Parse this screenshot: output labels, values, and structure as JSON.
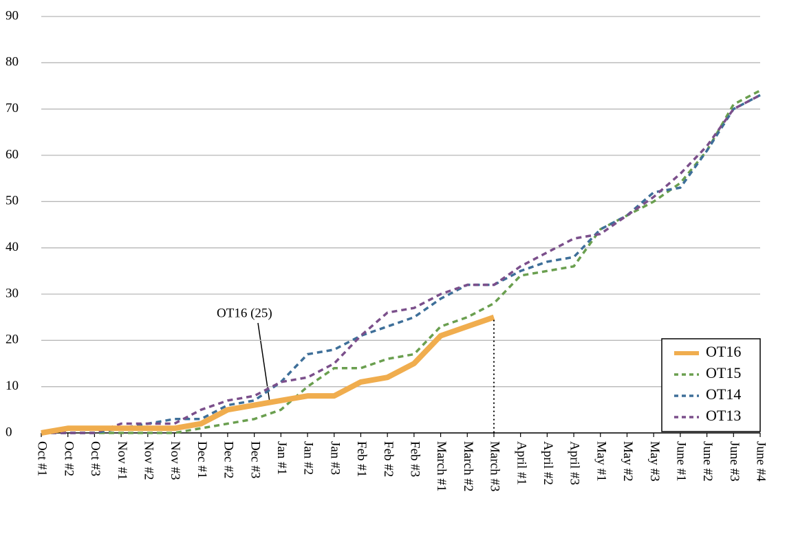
{
  "chart_data": {
    "type": "line",
    "categories": [
      "Oct #1",
      "Oct #2",
      "Oct #3",
      "Nov #1",
      "Nov #2",
      "Nov #3",
      "Dec #1",
      "Dec #2",
      "Dec #3",
      "Jan #1",
      "Jan #2",
      "Jan #3",
      "Feb #1",
      "Feb #2",
      "Feb #3",
      "March #1",
      "March #2",
      "March #3",
      "April #1",
      "April #2",
      "April #3",
      "May #1",
      "May #2",
      "May #3",
      "June #1",
      "June #2",
      "June #3",
      "June #4"
    ],
    "series": [
      {
        "name": "OT16",
        "color": "#f0ad4e",
        "style": "solid",
        "values": [
          0,
          1,
          1,
          1,
          1,
          1,
          2,
          5,
          6,
          7,
          8,
          8,
          11,
          12,
          15,
          21,
          23,
          25,
          null,
          null,
          null,
          null,
          null,
          null,
          null,
          null,
          null,
          null
        ]
      },
      {
        "name": "OT15",
        "color": "#6a9f4f",
        "style": "dashed",
        "values": [
          0,
          0,
          0,
          0,
          0,
          0,
          1,
          2,
          3,
          5,
          10,
          14,
          14,
          16,
          17,
          23,
          25,
          28,
          34,
          35,
          36,
          44,
          47,
          50,
          54,
          61,
          71,
          74
        ]
      },
      {
        "name": "OT14",
        "color": "#3e6f99",
        "style": "dashed",
        "values": [
          0,
          0,
          0,
          1,
          2,
          3,
          3,
          6,
          7,
          11,
          17,
          18,
          21,
          23,
          25,
          29,
          32,
          32,
          35,
          37,
          38,
          44,
          47,
          52,
          53,
          61,
          70,
          73
        ]
      },
      {
        "name": "OT13",
        "color": "#7b4f8b",
        "style": "dashed",
        "values": [
          0,
          0,
          0,
          2,
          2,
          2,
          5,
          7,
          8,
          11,
          12,
          15,
          21,
          26,
          27,
          30,
          32,
          32,
          36,
          39,
          42,
          43,
          47,
          51,
          56,
          62,
          70,
          73
        ]
      }
    ],
    "annotation": "OT16 (25)",
    "ylim": [
      0,
      90
    ],
    "yticks": [
      0,
      10,
      20,
      30,
      40,
      50,
      60,
      70,
      80,
      90
    ],
    "grid": true,
    "legend": "lower right"
  }
}
